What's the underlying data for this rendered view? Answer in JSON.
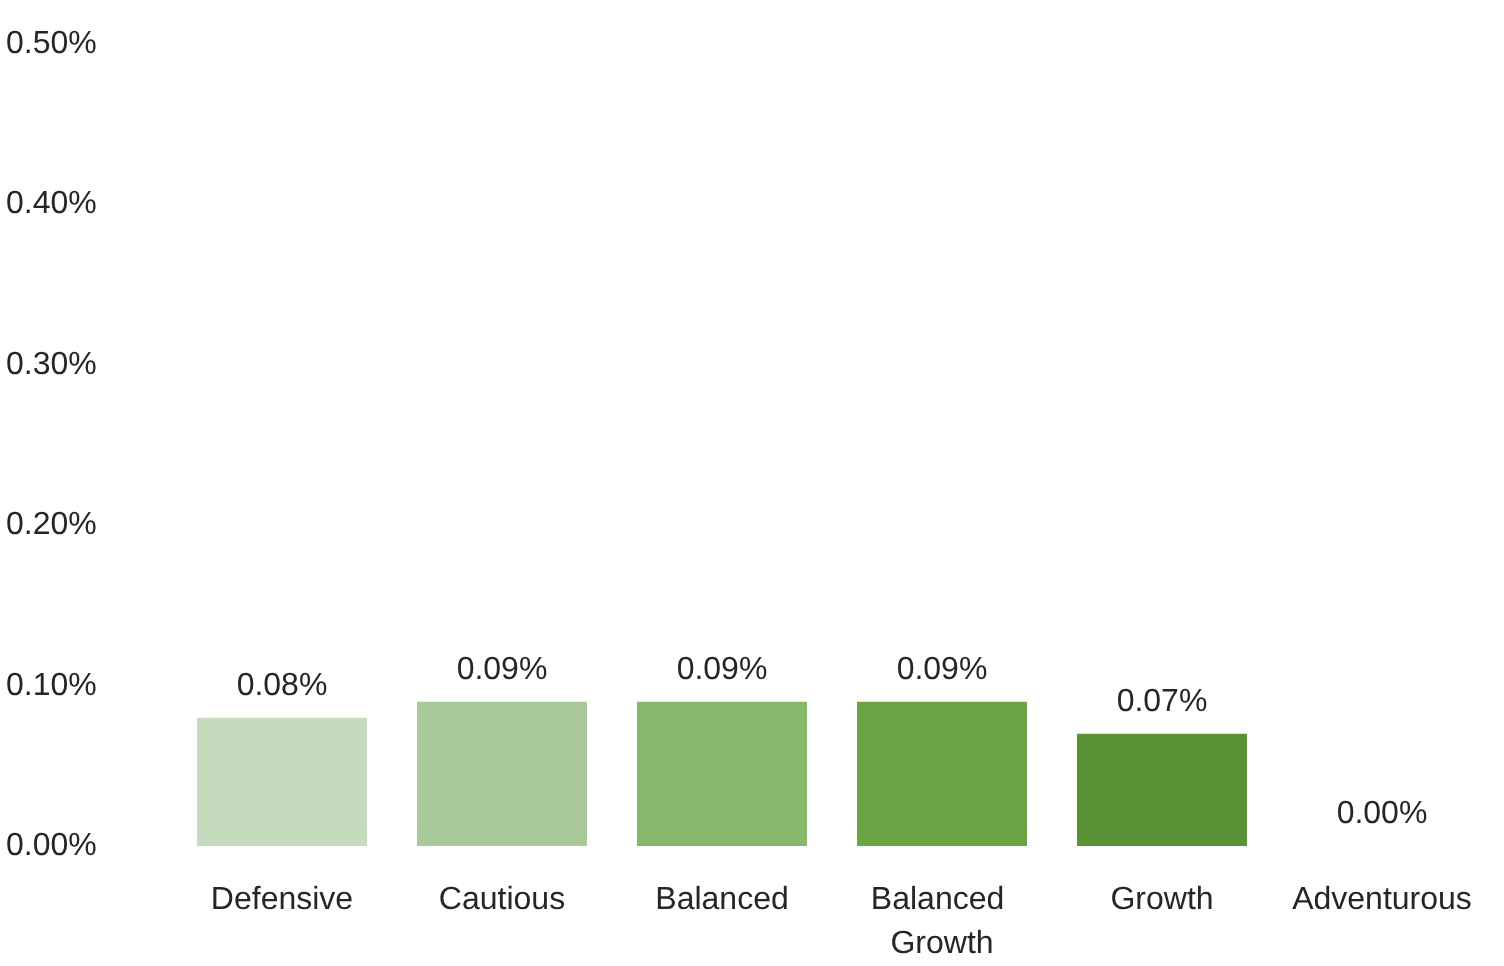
{
  "chart_data": {
    "type": "bar",
    "categories": [
      "Defensive",
      "Cautious",
      "Balanced",
      "Balanced Growth",
      "Growth",
      "Adventurous"
    ],
    "values": [
      0.08,
      0.09,
      0.09,
      0.09,
      0.07,
      0
    ],
    "colors": [
      "#c5dbbd",
      "#a9c99a",
      "#86b86c",
      "#6aa444",
      "#5a9238",
      "#4e8030"
    ],
    "value_labels": [
      "0.08%",
      "0.09%",
      "0.09%",
      "0.09%",
      "0.07%",
      "0.00%"
    ],
    "ylim": [
      0,
      0.5
    ],
    "yticks": [
      {
        "value": 0,
        "label": "0.00%"
      },
      {
        "value": 0.1,
        "label": "0.10%"
      },
      {
        "value": 0.2,
        "label": "0.20%"
      },
      {
        "value": 0.3,
        "label": "0.30%"
      },
      {
        "value": 0.4,
        "label": "0.40%"
      },
      {
        "value": 0.5,
        "label": "0.50%"
      }
    ],
    "grid": false
  }
}
